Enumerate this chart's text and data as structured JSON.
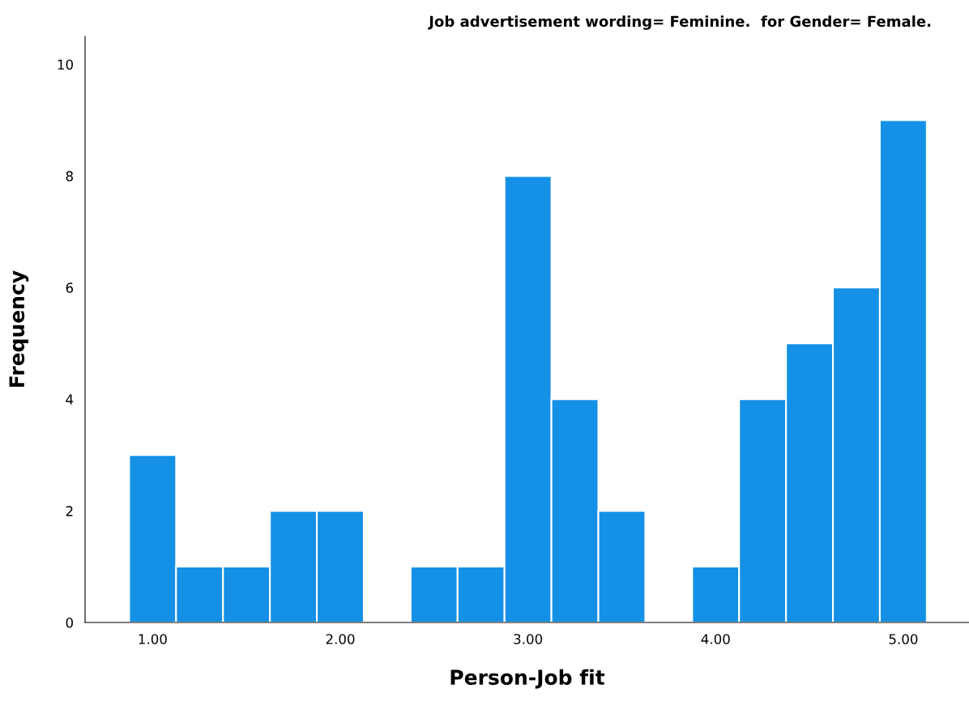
{
  "chart_data": {
    "type": "histogram",
    "title": "Job advertisement wording= Feminine.  for Gender= Female.",
    "xlabel": "Person-Job fit",
    "ylabel": "Frequency",
    "bins": [
      0.875,
      1.125,
      1.375,
      1.625,
      1.875,
      2.125,
      2.375,
      2.625,
      2.875,
      3.125,
      3.375,
      3.625,
      3.875,
      4.125,
      4.375,
      4.625,
      4.875,
      5.125
    ],
    "values": [
      3,
      1,
      1,
      2,
      2,
      0,
      1,
      1,
      8,
      4,
      2,
      0,
      1,
      4,
      5,
      6,
      9
    ],
    "color": "#1490e6",
    "xlim": [
      0.64,
      5.35
    ],
    "ylim": [
      0,
      10.5
    ],
    "xticks": [
      {
        "value": 1,
        "label": "1.00"
      },
      {
        "value": 2,
        "label": "2.00"
      },
      {
        "value": 3,
        "label": "3.00"
      },
      {
        "value": 4,
        "label": "4.00"
      },
      {
        "value": 5,
        "label": "5.00"
      }
    ],
    "yticks": [
      0,
      2,
      4,
      6,
      8,
      10
    ],
    "grid": false
  }
}
